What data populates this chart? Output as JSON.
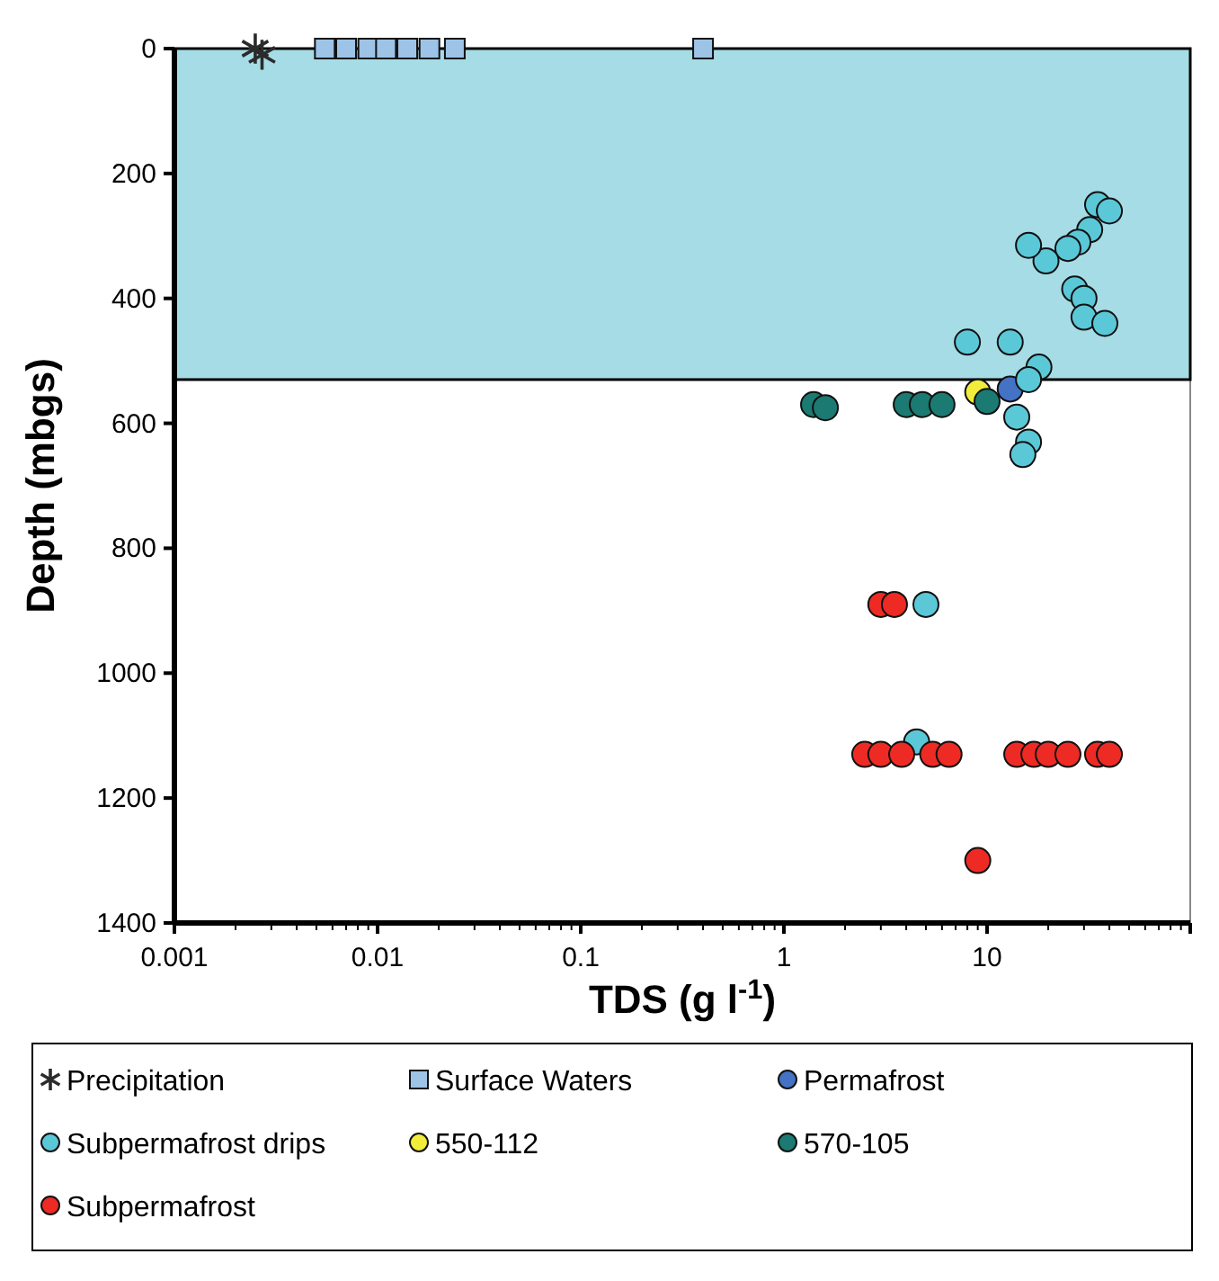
{
  "chart_data": {
    "type": "scatter",
    "xlabel": "TDS (g l$^{-1}$)",
    "ylabel": "Depth (mbgs)",
    "log": "x",
    "grid": false,
    "legend": "bottom",
    "xlim": [
      0.001,
      100
    ],
    "xticks": [
      0.001,
      0.01,
      0.1,
      1,
      10,
      {
        "value": 100,
        "label": null
      }
    ],
    "ylim": [
      1400,
      0
    ],
    "yticks": [
      0,
      200,
      400,
      600,
      800,
      1000,
      1200,
      1400
    ],
    "bands": [
      {
        "axis": "y",
        "from": 0,
        "to": 530,
        "color": "#a6dce6"
      }
    ],
    "series": [
      {
        "name": "Precipitation",
        "color": "#2b2b2b",
        "marker": "cross",
        "x": [
          0.0025,
          0.0027
        ],
        "values": [
          0,
          10
        ]
      },
      {
        "name": "Surface Waters",
        "color": "#9dc3e6",
        "marker": "square",
        "x": [
          0.0055,
          0.007,
          0.009,
          0.011,
          0.014,
          0.018,
          0.024,
          0.4
        ],
        "values": [
          0,
          0,
          0,
          0,
          0,
          0,
          0,
          0
        ]
      },
      {
        "name": "Permafrost",
        "color": "#4472c4",
        "marker": "circle",
        "x": [
          13
        ],
        "values": [
          545
        ]
      },
      {
        "name": "Subpermafrost drips",
        "color": "#5bc8d8",
        "marker": "circle",
        "x": [
          35,
          40,
          32,
          28,
          25,
          19.5,
          16,
          27,
          30,
          30,
          38,
          8,
          13,
          18,
          16,
          14,
          16,
          15,
          5,
          4.5
        ],
        "values": [
          250,
          260,
          290,
          310,
          320,
          340,
          315,
          385,
          400,
          430,
          440,
          470,
          470,
          510,
          530,
          590,
          630,
          650,
          890,
          1110
        ]
      },
      {
        "name": "550-112",
        "color": "#f2ec3a",
        "marker": "circle",
        "x": [
          9
        ],
        "values": [
          550
        ]
      },
      {
        "name": "570-105",
        "color": "#1b7a72",
        "marker": "circle",
        "x": [
          1.4,
          1.6,
          4,
          4.8,
          6,
          10
        ],
        "values": [
          570,
          575,
          570,
          570,
          570,
          565
        ]
      },
      {
        "name": "Subpermafrost",
        "color": "#ee2a24",
        "marker": "circle",
        "x": [
          3,
          3.5,
          2.5,
          3,
          3.8,
          5.4,
          6.5,
          14,
          17,
          20,
          25,
          35,
          40,
          9
        ],
        "values": [
          890,
          890,
          1130,
          1130,
          1130,
          1130,
          1130,
          1130,
          1130,
          1130,
          1130,
          1130,
          1130,
          1300
        ]
      }
    ]
  }
}
